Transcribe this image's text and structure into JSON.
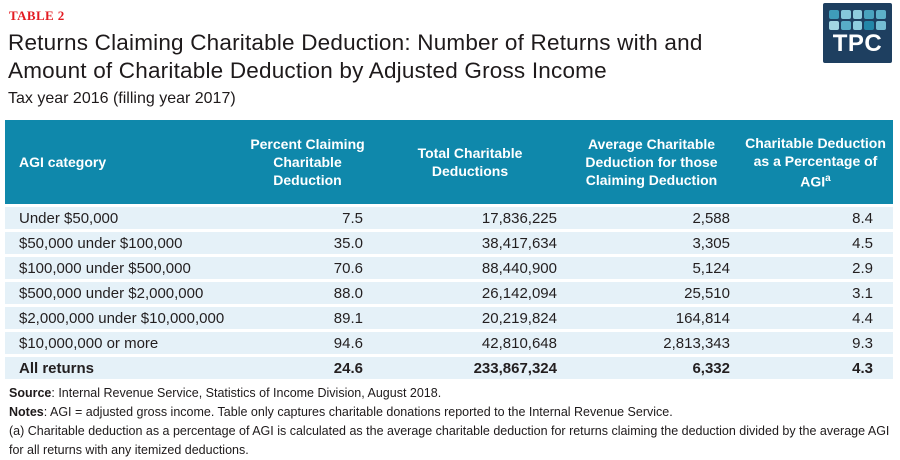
{
  "page": {
    "table_label": "TABLE 2",
    "title_line1": "Returns Claiming Charitable Deduction: Number of Returns with and",
    "title_line2": "Amount of Charitable Deduction by Adjusted Gross Income",
    "subtitle": "Tax year 2016 (filling year 2017)"
  },
  "logo": {
    "text": "TPC",
    "background": "#1e3f60",
    "square_colors": [
      "#3f9cba",
      "#85c8db",
      "#8fcddf",
      "#49a3bf",
      "#5db1c9",
      "#a2d6e3",
      "#58adc7",
      "#8fcddf",
      "#2386a8",
      "#74bdd3"
    ]
  },
  "colors": {
    "header_teal": "#0f88ab",
    "row_light_blue": "#e5f1f8",
    "label_red": "#e31b22",
    "logo_navy": "#1e3f60",
    "text_dark": "#231f20"
  },
  "table": {
    "headers": [
      {
        "label": "AGI category",
        "superscript": ""
      },
      {
        "label": "Percent Claiming Charitable Deduction",
        "superscript": ""
      },
      {
        "label": "Total Charitable Deductions",
        "superscript": ""
      },
      {
        "label": "Average Charitable Deduction for those Claiming Deduction",
        "superscript": ""
      },
      {
        "label": "Charitable Deduction as a Percentage of AGI",
        "superscript": "a"
      }
    ],
    "rows": [
      {
        "category": "Under $50,000",
        "percent_claiming": "7.5",
        "total_deductions": "17,836,225",
        "average_deduction": "2,588",
        "pct_of_agi": "8.4"
      },
      {
        "category": "$50,000 under $100,000",
        "percent_claiming": "35.0",
        "total_deductions": "38,417,634",
        "average_deduction": "3,305",
        "pct_of_agi": "4.5"
      },
      {
        "category": "$100,000 under $500,000",
        "percent_claiming": "70.6",
        "total_deductions": "88,440,900",
        "average_deduction": "5,124",
        "pct_of_agi": "2.9"
      },
      {
        "category": "$500,000 under $2,000,000",
        "percent_claiming": "88.0",
        "total_deductions": "26,142,094",
        "average_deduction": "25,510",
        "pct_of_agi": "3.1"
      },
      {
        "category": "$2,000,000 under $10,000,000",
        "percent_claiming": "89.1",
        "total_deductions": "20,219,824",
        "average_deduction": "164,814",
        "pct_of_agi": "4.4"
      },
      {
        "category": "$10,000,000 or more",
        "percent_claiming": "94.6",
        "total_deductions": "42,810,648",
        "average_deduction": "2,813,343",
        "pct_of_agi": "9.3"
      }
    ],
    "total_row": {
      "category": "All returns",
      "percent_claiming": "24.6",
      "total_deductions": "233,867,324",
      "average_deduction": "6,332",
      "pct_of_agi": "4.3"
    }
  },
  "notes": {
    "source_label": "Source",
    "source_text": ":  Internal Revenue Service, Statistics of Income Division, August 2018.",
    "notes_label": "Notes",
    "notes_text": ":  AGI = adjusted gross income. Table only captures charitable donations reported to the Internal Revenue Service.",
    "footnote_a": "(a) Charitable deduction as a percentage of AGI is calculated as the average charitable deduction for returns claiming the deduction divided by the average AGI for all returns with any itemized deductions."
  },
  "chart_data": {
    "type": "table",
    "title": "Returns Claiming Charitable Deduction: Number of Returns with and Amount of Charitable Deduction by Adjusted Gross Income",
    "subtitle": "Tax year 2016 (filling year 2017)",
    "columns": [
      "AGI category",
      "Percent Claiming Charitable Deduction",
      "Total Charitable Deductions",
      "Average Charitable Deduction for those Claiming Deduction",
      "Charitable Deduction as a Percentage of AGI (a)"
    ],
    "rows": [
      [
        "Under $50,000",
        7.5,
        17836225,
        2588,
        8.4
      ],
      [
        "$50,000 under $100,000",
        35.0,
        38417634,
        3305,
        4.5
      ],
      [
        "$100,000 under $500,000",
        70.6,
        88440900,
        5124,
        2.9
      ],
      [
        "$500,000 under $2,000,000",
        88.0,
        26142094,
        25510,
        3.1
      ],
      [
        "$2,000,000 under $10,000,000",
        89.1,
        20219824,
        164814,
        4.4
      ],
      [
        "$10,000,000 or more",
        94.6,
        42810648,
        2813343,
        9.3
      ],
      [
        "All returns",
        24.6,
        233867324,
        6332,
        4.3
      ]
    ]
  }
}
